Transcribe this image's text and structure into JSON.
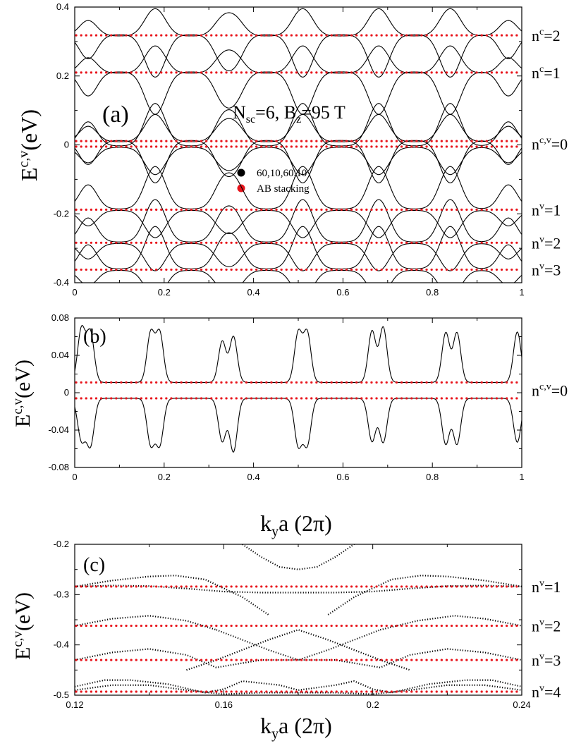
{
  "colors": {
    "axis": "#000000",
    "band": "#000000",
    "ab_stacking": "#e8141b"
  },
  "chart_data": [
    {
      "panel": "(a)",
      "type": "line",
      "annotation": "N_sc=6, B_z=95 T",
      "annotation_parts": {
        "n_main": "N",
        "n_sub": "sc",
        "n_eq": "=6, B",
        "b_sub": "z",
        "b_eq": "=95 T"
      },
      "ylabel_main": "E",
      "ylabel_sup": "c,v",
      "ylabel_unit": "(eV)",
      "xlim": [
        0,
        1
      ],
      "ylim": [
        -0.4,
        0.4
      ],
      "xticks": [
        0,
        0.2,
        0.4,
        0.6,
        0.8,
        1
      ],
      "xtick_labels": [
        "0",
        "0.2",
        "0.4",
        "0.6",
        "0.8",
        "1"
      ],
      "yticks": [
        -0.4,
        -0.2,
        0,
        0.2,
        0.4
      ],
      "ytick_labels": [
        "-0.4",
        "-0.2",
        "0",
        "0.2",
        "0.4"
      ],
      "legend": [
        {
          "label": "60,10,60,10",
          "color": "#000000",
          "style": "solid"
        },
        {
          "label": "AB stacking",
          "color": "#e8141b",
          "style": "dotted"
        }
      ],
      "reference_levels": [
        {
          "label": "n^c=2",
          "main": "n",
          "sup": "c",
          "rest": "=2",
          "levels": [
            0.318
          ]
        },
        {
          "label": "n^c=1",
          "main": "n",
          "sup": "c",
          "rest": "=1",
          "levels": [
            0.21
          ]
        },
        {
          "label": "n^c,v=0",
          "main": "n",
          "sup": "c,v",
          "rest": "=0",
          "levels": [
            0.011,
            -0.005
          ]
        },
        {
          "label": "n^v=1",
          "main": "n",
          "sup": "v",
          "rest": "=1",
          "levels": [
            -0.188
          ]
        },
        {
          "label": "n^v=2",
          "main": "n",
          "sup": "v",
          "rest": "=2",
          "levels": [
            -0.284
          ]
        },
        {
          "label": "n^v=3",
          "main": "n",
          "sup": "v",
          "rest": "=3",
          "levels": [
            -0.362
          ]
        }
      ],
      "flat_bands": [
        0.318,
        0.21,
        0.011,
        -0.005,
        -0.188,
        -0.284,
        -0.362
      ],
      "band_dip_centers": [
        0.03,
        0.17,
        0.19,
        0.33,
        0.36,
        0.5,
        0.52,
        0.67,
        0.69,
        0.83,
        0.85,
        0.97
      ]
    },
    {
      "panel": "(b)",
      "type": "line",
      "ylabel_main": "E",
      "ylabel_sup": "c,v",
      "ylabel_unit": "(eV)",
      "xlim": [
        0,
        1
      ],
      "ylim": [
        -0.08,
        0.08
      ],
      "xticks": [
        0,
        0.2,
        0.4,
        0.6,
        0.8,
        1
      ],
      "xtick_labels": [
        "0",
        "0.2",
        "0.4",
        "0.6",
        "0.8",
        "1"
      ],
      "yticks": [
        -0.08,
        -0.04,
        0,
        0.04,
        0.08
      ],
      "ytick_labels": [
        "-0.08",
        "-0.04",
        "0",
        "0.04",
        "0.08"
      ],
      "reference_levels": [
        {
          "label": "n^c,v=0",
          "main": "n",
          "sup": "c,v",
          "rest": "=0",
          "levels": [
            0.011,
            -0.006
          ]
        }
      ],
      "flat_bands": [
        0.011,
        -0.006
      ],
      "peak_centers": [
        0.015,
        0.035,
        0.17,
        0.19,
        0.33,
        0.355,
        0.5,
        0.52,
        0.665,
        0.69,
        0.83,
        0.855,
        0.99
      ],
      "peak_heights": [
        0.068,
        0.064,
        0.064,
        0.064,
        0.055,
        0.06,
        0.064,
        0.064,
        0.066,
        0.07,
        0.064,
        0.064,
        0.065
      ],
      "dip_heights": [
        -0.05,
        -0.056,
        -0.055,
        -0.055,
        -0.052,
        -0.063,
        -0.056,
        -0.055,
        -0.052,
        -0.053,
        -0.055,
        -0.055,
        -0.053
      ],
      "xlabel_main": "k",
      "xlabel_sub": "y",
      "xlabel_rest": "a (2π)"
    },
    {
      "panel": "(c)",
      "type": "scatter",
      "ylabel_main": "E",
      "ylabel_sup": "c,v",
      "ylabel_unit": "(eV)",
      "xlim": [
        0.12,
        0.24
      ],
      "ylim": [
        -0.5,
        -0.2
      ],
      "xticks": [
        0.12,
        0.16,
        0.2,
        0.24
      ],
      "xtick_labels": [
        "0.12",
        "0.16",
        "0.2",
        "0.24"
      ],
      "yticks": [
        -0.5,
        -0.4,
        -0.3,
        -0.2
      ],
      "ytick_labels": [
        "-0.5",
        "-0.4",
        "-0.3",
        "-0.2"
      ],
      "reference_levels": [
        {
          "label": "n^v=1",
          "main": "n",
          "sup": "v",
          "rest": "=1",
          "levels": [
            -0.284
          ]
        },
        {
          "label": "n^v=2",
          "main": "n",
          "sup": "v",
          "rest": "=2",
          "levels": [
            -0.362
          ]
        },
        {
          "label": "n^v=3",
          "main": "n",
          "sup": "v",
          "rest": "=3",
          "levels": [
            -0.43
          ]
        },
        {
          "label": "n^v=4",
          "main": "n",
          "sup": "v",
          "rest": "=4",
          "levels": [
            -0.493
          ]
        }
      ],
      "bands": [
        {
          "x": [
            0.12,
            0.13,
            0.14,
            0.147,
            0.155,
            0.165,
            0.172
          ],
          "y": [
            -0.284,
            -0.272,
            -0.264,
            -0.262,
            -0.27,
            -0.305,
            -0.34
          ]
        },
        {
          "x": [
            0.188,
            0.195,
            0.205,
            0.213,
            0.22,
            0.23,
            0.24
          ],
          "y": [
            -0.34,
            -0.305,
            -0.27,
            -0.262,
            -0.264,
            -0.272,
            -0.284
          ]
        },
        {
          "x": [
            0.12,
            0.13,
            0.14,
            0.15,
            0.16,
            0.17,
            0.18,
            0.19,
            0.2,
            0.21,
            0.22,
            0.23,
            0.24
          ],
          "y": [
            -0.284,
            -0.282,
            -0.283,
            -0.288,
            -0.294,
            -0.296,
            -0.296,
            -0.296,
            -0.294,
            -0.288,
            -0.283,
            -0.282,
            -0.284
          ]
        },
        {
          "x": [
            0.165,
            0.17,
            0.175,
            0.18,
            0.185,
            0.19,
            0.195
          ],
          "y": [
            -0.2,
            -0.225,
            -0.245,
            -0.25,
            -0.245,
            -0.225,
            -0.2
          ]
        },
        {
          "x": [
            0.12,
            0.13,
            0.14,
            0.15,
            0.158
          ],
          "y": [
            -0.362,
            -0.348,
            -0.342,
            -0.352,
            -0.37
          ]
        },
        {
          "x": [
            0.222,
            0.23,
            0.24
          ],
          "y": [
            -0.342,
            -0.348,
            -0.362
          ]
        },
        {
          "x": [
            0.202,
            0.212,
            0.222
          ],
          "y": [
            -0.37,
            -0.352,
            -0.342
          ]
        },
        {
          "x": [
            0.158,
            0.165,
            0.172,
            0.18,
            0.188,
            0.195,
            0.202
          ],
          "y": [
            -0.37,
            -0.39,
            -0.41,
            -0.43,
            -0.41,
            -0.39,
            -0.37
          ]
        },
        {
          "x": [
            0.12,
            0.13,
            0.14,
            0.15,
            0.158,
            0.17,
            0.18,
            0.19,
            0.202,
            0.21,
            0.22,
            0.23,
            0.24
          ],
          "y": [
            -0.43,
            -0.415,
            -0.408,
            -0.42,
            -0.445,
            -0.43,
            -0.43,
            -0.43,
            -0.445,
            -0.42,
            -0.408,
            -0.415,
            -0.43
          ]
        },
        {
          "x": [
            0.15,
            0.158,
            0.165,
            0.172,
            0.18,
            0.188,
            0.195,
            0.202,
            0.21
          ],
          "y": [
            -0.45,
            -0.43,
            -0.41,
            -0.39,
            -0.37,
            -0.39,
            -0.41,
            -0.43,
            -0.45
          ]
        },
        {
          "x": [
            0.12,
            0.128,
            0.135,
            0.145,
            0.155,
            0.16,
            0.165,
            0.175,
            0.18,
            0.19,
            0.195,
            0.2,
            0.205,
            0.215,
            0.225,
            0.232,
            0.24
          ],
          "y": [
            -0.483,
            -0.47,
            -0.47,
            -0.478,
            -0.495,
            -0.488,
            -0.472,
            -0.48,
            -0.49,
            -0.48,
            -0.472,
            -0.488,
            -0.495,
            -0.478,
            -0.47,
            -0.47,
            -0.483
          ]
        },
        {
          "x": [
            0.12,
            0.13,
            0.14,
            0.15,
            0.16,
            0.17,
            0.18,
            0.19,
            0.2,
            0.21,
            0.22,
            0.23,
            0.24
          ],
          "y": [
            -0.49,
            -0.48,
            -0.48,
            -0.49,
            -0.498,
            -0.495,
            -0.495,
            -0.495,
            -0.498,
            -0.49,
            -0.48,
            -0.48,
            -0.49
          ]
        }
      ],
      "xlabel_main": "k",
      "xlabel_sub": "y",
      "xlabel_rest": "a (2π)"
    }
  ]
}
